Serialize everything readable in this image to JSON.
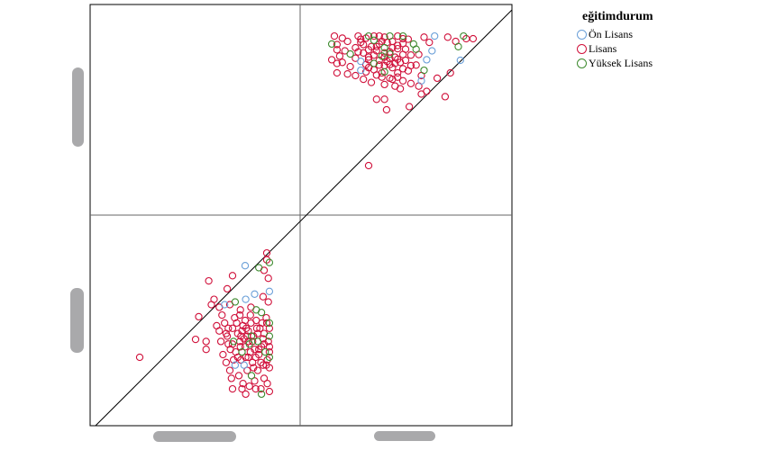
{
  "chart_data": {
    "type": "scatter",
    "layout": "scatterplot-matrix 2x2",
    "title": "",
    "variables": [
      "",
      ""
    ],
    "axis_range": [
      1,
      5
    ],
    "grid": false,
    "diagonal_reference_line": true,
    "legend": {
      "title": "eğitimdurum",
      "placement": "top-right",
      "entries": [
        {
          "name": "Ön Lisans",
          "color": "#6a9fd8"
        },
        {
          "name": "Lisans",
          "color": "#d0103a"
        },
        {
          "name": "Yüksek Lisans",
          "color": "#3d8a2e"
        }
      ]
    },
    "point_fields": [
      "var1",
      "var2",
      "group_index"
    ],
    "points": [
      [
        1.94,
        2.3,
        1
      ],
      [
        3.0,
        2.64,
        1
      ],
      [
        3.06,
        3.07,
        1
      ],
      [
        3.2,
        2.45,
        1
      ],
      [
        3.2,
        2.6,
        1
      ],
      [
        3.25,
        3.75,
        1
      ],
      [
        3.45,
        3.25,
        1
      ],
      [
        3.94,
        4.04,
        0
      ],
      [
        4.35,
        4.28,
        1
      ],
      [
        4.35,
        4.15,
        1
      ],
      [
        4.4,
        4.1,
        2
      ],
      [
        4.3,
        3.95,
        1
      ],
      [
        4.2,
        4.0,
        2
      ],
      [
        3.7,
        3.85,
        1
      ],
      [
        4.38,
        3.8,
        1
      ],
      [
        4.4,
        3.55,
        0
      ],
      [
        3.55,
        3.3,
        0
      ],
      [
        3.65,
        3.3,
        1
      ],
      [
        3.75,
        3.35,
        2
      ],
      [
        3.85,
        3.2,
        1
      ],
      [
        3.5,
        3.1,
        1
      ],
      [
        4.05,
        3.25,
        1
      ],
      [
        4.15,
        3.2,
        2
      ],
      [
        4.25,
        3.15,
        2
      ],
      [
        3.95,
        3.4,
        0
      ],
      [
        3.3,
        3.3,
        1
      ],
      [
        3.35,
        3.4,
        1
      ],
      [
        3.6,
        3.6,
        1
      ],
      [
        3.4,
        2.9,
        1
      ],
      [
        3.45,
        2.8,
        1
      ],
      [
        3.55,
        2.95,
        1
      ],
      [
        3.6,
        2.7,
        1
      ],
      [
        3.62,
        2.55,
        1
      ],
      [
        3.7,
        2.85,
        1
      ],
      [
        3.72,
        2.6,
        2
      ],
      [
        3.78,
        2.95,
        1
      ],
      [
        3.8,
        2.75,
        1
      ],
      [
        3.85,
        2.5,
        1
      ],
      [
        3.88,
        2.4,
        2
      ],
      [
        3.9,
        2.9,
        1
      ],
      [
        3.92,
        2.65,
        1
      ],
      [
        3.95,
        2.3,
        1
      ],
      [
        4.0,
        2.8,
        1
      ],
      [
        4.02,
        2.55,
        2
      ],
      [
        4.05,
        2.95,
        1
      ],
      [
        4.08,
        2.2,
        1
      ],
      [
        4.1,
        2.7,
        1
      ],
      [
        4.12,
        2.45,
        1
      ],
      [
        4.15,
        3.0,
        1
      ],
      [
        4.18,
        2.6,
        2
      ],
      [
        4.2,
        2.35,
        1
      ],
      [
        4.22,
        2.85,
        1
      ],
      [
        4.25,
        2.5,
        1
      ],
      [
        4.28,
        2.15,
        1
      ],
      [
        4.3,
        2.75,
        1
      ],
      [
        4.32,
        2.4,
        2
      ],
      [
        4.35,
        2.95,
        1
      ],
      [
        4.38,
        2.6,
        1
      ],
      [
        4.4,
        2.3,
        2
      ],
      [
        4.4,
        2.7,
        2
      ],
      [
        4.4,
        2.5,
        1
      ],
      [
        4.4,
        2.85,
        1
      ],
      [
        4.4,
        2.1,
        1
      ],
      [
        3.48,
        2.6,
        1
      ],
      [
        3.52,
        2.35,
        1
      ],
      [
        3.58,
        2.2,
        1
      ],
      [
        3.65,
        2.05,
        1
      ],
      [
        3.68,
        1.9,
        1
      ],
      [
        3.75,
        2.15,
        0
      ],
      [
        3.82,
        1.95,
        1
      ],
      [
        3.86,
        2.25,
        1
      ],
      [
        3.9,
        1.8,
        1
      ],
      [
        3.98,
        2.05,
        1
      ],
      [
        4.02,
        1.75,
        1
      ],
      [
        4.06,
        1.95,
        2
      ],
      [
        4.12,
        1.85,
        1
      ],
      [
        4.18,
        2.05,
        1
      ],
      [
        4.24,
        1.7,
        1
      ],
      [
        4.3,
        1.9,
        1
      ],
      [
        4.36,
        1.8,
        1
      ],
      [
        4.4,
        1.65,
        1
      ],
      [
        3.95,
        1.6,
        1
      ],
      [
        3.7,
        1.7,
        1
      ],
      [
        4.25,
        1.6,
        2
      ],
      [
        3.76,
        2.4,
        1
      ],
      [
        3.84,
        2.6,
        1
      ],
      [
        3.94,
        2.5,
        1
      ],
      [
        4.04,
        2.4,
        1
      ],
      [
        4.14,
        2.3,
        1
      ],
      [
        4.24,
        2.2,
        1
      ],
      [
        3.88,
        2.8,
        1
      ],
      [
        3.98,
        2.7,
        1
      ],
      [
        4.08,
        2.6,
        1
      ],
      [
        4.18,
        2.75,
        1
      ],
      [
        4.28,
        2.65,
        1
      ],
      [
        3.66,
        2.45,
        1
      ],
      [
        3.58,
        2.75,
        1
      ],
      [
        3.74,
        3.05,
        1
      ],
      [
        3.84,
        3.1,
        1
      ],
      [
        3.94,
        3.0,
        1
      ],
      [
        4.04,
        3.1,
        1
      ],
      [
        4.34,
        3.05,
        1
      ],
      [
        4.38,
        3.35,
        1
      ],
      [
        4.28,
        3.45,
        1
      ],
      [
        4.12,
        3.5,
        0
      ],
      [
        3.92,
        2.15,
        0
      ],
      [
        4.1,
        2.1,
        1
      ],
      [
        4.2,
        2.45,
        1
      ],
      [
        4.3,
        2.55,
        1
      ],
      [
        4.0,
        2.3,
        1
      ],
      [
        3.8,
        2.3,
        1
      ],
      [
        3.7,
        2.55,
        1
      ],
      [
        4.36,
        2.25,
        1
      ],
      [
        4.26,
        2.95,
        1
      ],
      [
        4.16,
        2.85,
        1
      ],
      [
        3.96,
        2.85,
        1
      ],
      [
        3.86,
        2.7,
        1
      ],
      [
        3.62,
        2.85,
        1
      ],
      [
        4.06,
        2.7,
        2
      ],
      [
        4.4,
        2.95,
        2
      ],
      [
        4.4,
        2.4,
        1
      ],
      [
        4.34,
        2.15,
        1
      ],
      [
        4.14,
        1.7,
        1
      ],
      [
        3.88,
        1.7,
        1
      ],
      [
        4.0,
        2.6,
        1
      ],
      [
        3.72,
        2.25,
        1
      ]
    ]
  }
}
